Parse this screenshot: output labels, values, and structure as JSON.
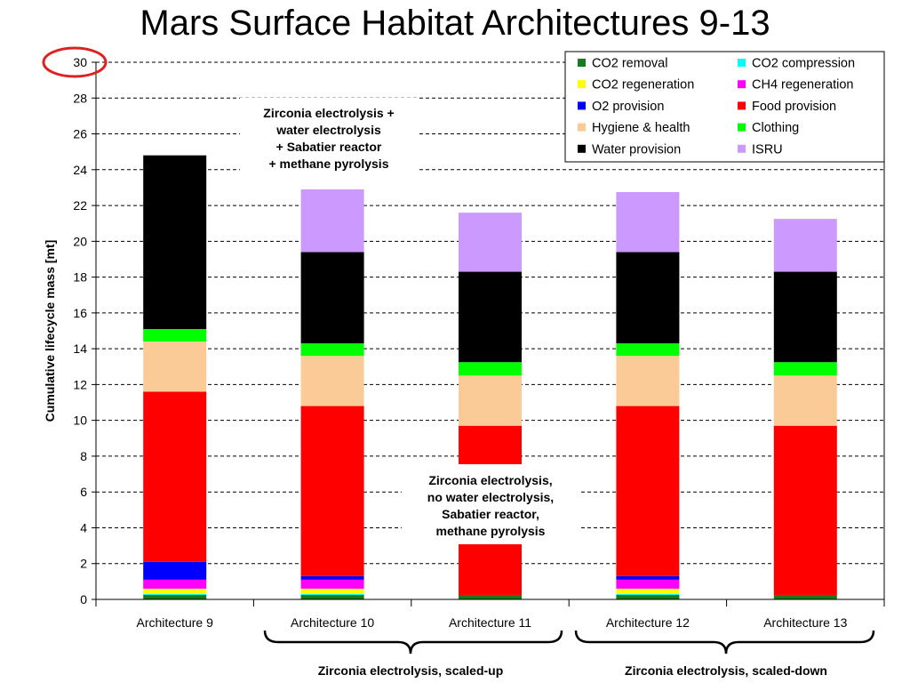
{
  "title": "Mars Surface Habitat Architectures 9-13",
  "chart_data": {
    "type": "bar",
    "stacked": true,
    "ylabel": "Cumulative lifecycle mass [mt]",
    "ylim": [
      0,
      30
    ],
    "yticks": [
      0,
      2,
      4,
      6,
      8,
      10,
      12,
      14,
      16,
      18,
      20,
      22,
      24,
      26,
      28,
      30
    ],
    "grid": true,
    "legend_position": "top-right",
    "categories": [
      "Architecture 9",
      "Architecture 10",
      "Architecture 11",
      "Architecture 12",
      "Architecture 13"
    ],
    "series": [
      {
        "name": "CO2 removal",
        "color": "#1a7a1a",
        "values": [
          0.25,
          0.25,
          0.25,
          0.25,
          0.25
        ]
      },
      {
        "name": "CO2 compression",
        "color": "#00ffff",
        "values": [
          0.05,
          0.05,
          0.0,
          0.05,
          0.0
        ]
      },
      {
        "name": "CO2 regeneration",
        "color": "#ffff00",
        "values": [
          0.3,
          0.3,
          0.0,
          0.3,
          0.0
        ]
      },
      {
        "name": "CH4 regeneration",
        "color": "#ff00ff",
        "values": [
          0.5,
          0.5,
          0.0,
          0.5,
          0.0
        ]
      },
      {
        "name": "O2 provision",
        "color": "#0000ff",
        "values": [
          1.0,
          0.2,
          0.0,
          0.2,
          0.0
        ]
      },
      {
        "name": "Food provision",
        "color": "#ff0000",
        "values": [
          9.5,
          9.5,
          9.45,
          9.5,
          9.45
        ]
      },
      {
        "name": "Hygiene & health",
        "color": "#fbcb97",
        "values": [
          2.8,
          2.8,
          2.8,
          2.8,
          2.8
        ]
      },
      {
        "name": "Clothing",
        "color": "#00ff00",
        "values": [
          0.7,
          0.7,
          0.75,
          0.7,
          0.75
        ]
      },
      {
        "name": "Water provision",
        "color": "#000000",
        "values": [
          9.7,
          5.1,
          5.05,
          5.1,
          5.05
        ]
      },
      {
        "name": "ISRU",
        "color": "#cc99ff",
        "values": [
          0.0,
          3.5,
          3.3,
          3.35,
          2.95
        ]
      }
    ],
    "annotations": [
      {
        "text_lines": [
          "Zirconia electrolysis +",
          "water electrolysis",
          "+ Sabatier reactor",
          "+ methane pyrolysis"
        ]
      },
      {
        "text_lines": [
          "Zirconia electrolysis,",
          "no water electrolysis,",
          "Sabatier reactor,",
          "methane pyrolysis"
        ]
      }
    ],
    "groups": [
      {
        "label": "Zirconia electrolysis, scaled-up"
      },
      {
        "label": "Zirconia electrolysis, scaled-down"
      }
    ],
    "highlight": "30"
  }
}
